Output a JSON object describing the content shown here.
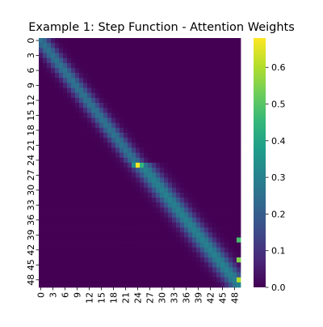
{
  "chart_data": {
    "type": "heatmap",
    "title": "Example 1: Step Function - Attention Weights",
    "xlabel": "",
    "ylabel": "",
    "x_tick_labels": [
      "0",
      "3",
      "6",
      "9",
      "12",
      "15",
      "18",
      "21",
      "24",
      "27",
      "30",
      "33",
      "36",
      "39",
      "42",
      "45",
      "48"
    ],
    "y_tick_labels": [
      "0",
      "3",
      "6",
      "9",
      "12",
      "15",
      "18",
      "21",
      "24",
      "27",
      "30",
      "33",
      "36",
      "39",
      "42",
      "45",
      "48"
    ],
    "x_count": 50,
    "y_count": 50,
    "colormap": "viridis",
    "colorbar": {
      "vmin": 0.0,
      "vmax": 0.68,
      "tick_labels": [
        "0.0",
        "0.1",
        "0.2",
        "0.3",
        "0.4",
        "0.5",
        "0.6"
      ],
      "tick_values": [
        0.0,
        0.1,
        0.2,
        0.3,
        0.4,
        0.5,
        0.6
      ]
    },
    "bands": [
      {
        "x_start": 0,
        "y_start": 0,
        "x_end": 23,
        "y_end": 24,
        "peak": 0.26,
        "width": 1.6
      },
      {
        "x_start": 25,
        "y_start": 25,
        "x_end": 49,
        "y_end": 49,
        "peak": 0.3,
        "width": 2.0
      }
    ],
    "hot_cells": [
      {
        "row": 25,
        "col": 24,
        "value": 0.68
      },
      {
        "row": 25,
        "col": 25,
        "value": 0.45
      },
      {
        "row": 25,
        "col": 23,
        "value": 0.34
      },
      {
        "row": 40,
        "col": 49,
        "value": 0.48
      },
      {
        "row": 44,
        "col": 49,
        "value": 0.55
      },
      {
        "row": 48,
        "col": 49,
        "value": 0.6
      }
    ]
  }
}
